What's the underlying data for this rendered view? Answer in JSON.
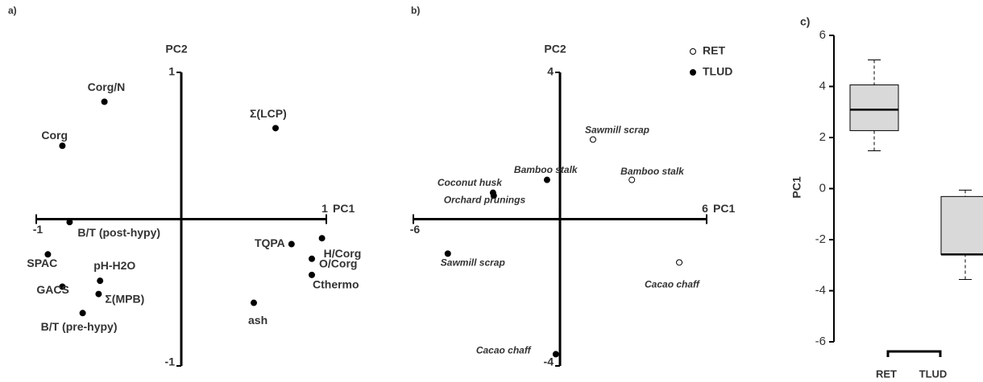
{
  "chart_data": [
    {
      "type": "scatter",
      "title": "a)",
      "x_label": "PC1",
      "y_label": "PC2",
      "xlim": [
        -1,
        1
      ],
      "ylim": [
        -1,
        1
      ],
      "xticks": [
        -1,
        1
      ],
      "yticks": [
        -1,
        1
      ],
      "series": [
        {
          "color": "#000000",
          "labels": [
            "Corg/N",
            "Corg",
            "Σ(LCP)",
            "B/T (post-hypy)",
            "SPAC",
            "pH-H2O",
            "GACS",
            "Σ(MPB)",
            "B/T (pre-hypy)",
            "TQPA",
            "H/Corg",
            "O/Corg",
            "Cthermo",
            "ash"
          ],
          "x": [
            -0.53,
            -0.82,
            0.65,
            -0.77,
            -0.92,
            -0.56,
            -0.82,
            -0.57,
            -0.68,
            0.76,
            0.97,
            0.9,
            0.9,
            0.5
          ],
          "values": [
            0.8,
            0.5,
            0.62,
            -0.02,
            -0.24,
            -0.42,
            -0.46,
            -0.51,
            -0.64,
            -0.17,
            -0.13,
            -0.27,
            -0.38,
            -0.57
          ]
        }
      ]
    },
    {
      "type": "scatter",
      "title": "b)",
      "x_label": "PC1",
      "y_label": "PC2",
      "xlim": [
        -6,
        6
      ],
      "ylim": [
        -4,
        4
      ],
      "xticks": [
        -6,
        6
      ],
      "yticks": [
        -4,
        4
      ],
      "legend": "top-right",
      "series": [
        {
          "name": "RET",
          "color": "#ffffff",
          "labels": [
            "Sawmill scrap",
            "Bamboo stalk",
            "Cacao chaff"
          ],
          "x": [
            1.35,
            2.94,
            4.88
          ],
          "values": [
            2.17,
            1.07,
            -1.18
          ]
        },
        {
          "name": "TLUD",
          "color": "#000000",
          "labels": [
            "Bamboo stalk",
            "Coconut husk",
            "Orchard prunings",
            "Sawmill scrap",
            "Cacao chaff"
          ],
          "x": [
            -0.53,
            -2.74,
            -2.71,
            -4.59,
            -0.17
          ],
          "values": [
            1.07,
            0.72,
            0.64,
            -0.94,
            -3.68
          ]
        }
      ]
    },
    {
      "type": "box",
      "title": "c)",
      "y_label": "PC1",
      "color": "#d9d9d9",
      "ylim": [
        -6,
        6
      ],
      "yticks": [
        -6,
        -4,
        -2,
        0,
        2,
        4,
        6
      ],
      "categories": [
        "RET",
        "TLUD"
      ],
      "min": [
        1.48,
        -3.56
      ],
      "q1": [
        2.27,
        -2.58
      ],
      "median": [
        3.09,
        -2.58
      ],
      "q3": [
        4.06,
        -0.31
      ],
      "max": [
        5.04,
        -0.06
      ]
    }
  ]
}
